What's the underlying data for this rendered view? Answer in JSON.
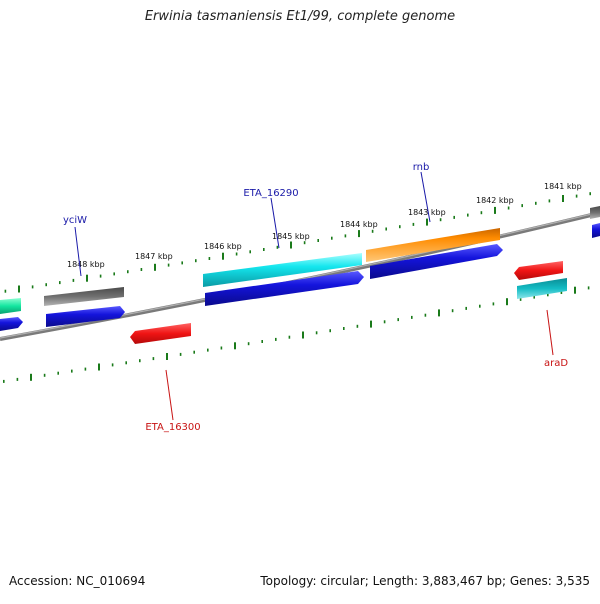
{
  "title": "Erwinia tasmaniensis Et1/99, complete genome",
  "footer": {
    "accession": "Accession: NC_010694",
    "summary": "Topology: circular; Length: 3,883,467 bp; Genes: 3,535"
  },
  "colors": {
    "backbone": "#8a8a8a",
    "tick": "#1a7a1a",
    "gene_label": "#1a1aa8",
    "gene_label_minus": "#c81414",
    "blue": "#1414dc",
    "cyan": "#14e6ee",
    "orange": "#ff9a14",
    "gray": "#6e6e6e",
    "red": "#f01414",
    "teal": "#14bcc4",
    "green": "#14e6a0"
  },
  "scale_labels": [
    "1848 kbp",
    "1847 kbp",
    "1846 kbp",
    "1845 kbp",
    "1844 kbp",
    "1843 kbp",
    "1842 kbp",
    "1841 kbp"
  ],
  "gene_labels": [
    {
      "name": "yciW",
      "strand": "plus"
    },
    {
      "name": "ETA_16290",
      "strand": "plus"
    },
    {
      "name": "rnb",
      "strand": "plus"
    },
    {
      "name": "ETA_16300",
      "strand": "minus"
    },
    {
      "name": "araD",
      "strand": "minus"
    }
  ],
  "features": [
    {
      "name": "gray-feature-left",
      "color": "gray"
    },
    {
      "name": "cyan-feature-eta16290",
      "color": "cyan"
    },
    {
      "name": "orange-feature-rnb",
      "color": "orange"
    },
    {
      "name": "gray-feature-right",
      "color": "gray"
    },
    {
      "name": "green-feature-left",
      "color": "green"
    },
    {
      "name": "blue-gene-left-edge",
      "color": "blue"
    },
    {
      "name": "blue-gene-yciw",
      "color": "blue"
    },
    {
      "name": "blue-gene-eta16290",
      "color": "blue"
    },
    {
      "name": "blue-gene-rnb",
      "color": "blue"
    },
    {
      "name": "blue-gene-right-edge",
      "color": "blue"
    },
    {
      "name": "red-gene-eta16300",
      "color": "red"
    },
    {
      "name": "red-gene-arad",
      "color": "red"
    },
    {
      "name": "teal-feature-arad",
      "color": "teal"
    }
  ]
}
